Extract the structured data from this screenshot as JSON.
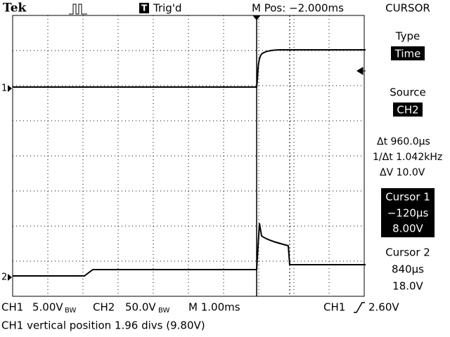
{
  "header": {
    "brand": "Tek",
    "trigger_status": "Trig'd",
    "position": "M Pos: −2.000ms"
  },
  "menu": {
    "title": "CURSOR",
    "type_label": "Type",
    "type_value": "Time",
    "source_label": "Source",
    "source_value": "CH2",
    "delta_t": "Δt 960.0µs",
    "inverse_delta_t": "1/Δt 1.042kHz",
    "delta_v": "ΔV 10.0V",
    "cursor1": {
      "label": "Cursor 1",
      "time": "−120µs",
      "voltage": "8.00V"
    },
    "cursor2": {
      "label": "Cursor 2",
      "time": "840µs",
      "voltage": "18.0V"
    }
  },
  "markers": {
    "ch1": "1",
    "ch2": "2"
  },
  "status": {
    "ch1_name": "CH1",
    "ch1_scale": "5.00V",
    "ch1_bw": "BW",
    "ch2_name": "CH2",
    "ch2_scale": "50.0V",
    "ch2_bw": "BW",
    "timebase": "M 1.00ms",
    "trigger_source": "CH1",
    "trigger_level": "2.60V"
  },
  "message": "CH1 vertical position 1.96 divs (9.80V)"
}
